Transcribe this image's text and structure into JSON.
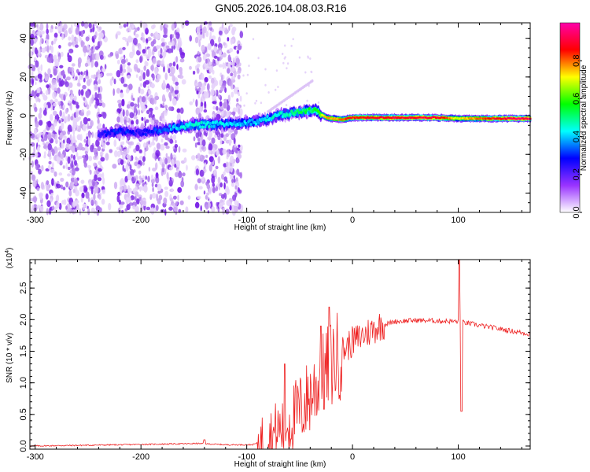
{
  "title": "GN05.2026.104.08.03.R16",
  "chart_data": [
    {
      "type": "heatmap",
      "xlabel": "Height of straight line (km)",
      "ylabel": "Frequency (Hz)",
      "xlim": [
        -305,
        168
      ],
      "ylim": [
        -50,
        48
      ],
      "xticks": [
        -300,
        -200,
        -100,
        0,
        100
      ],
      "yticks": [
        -40,
        -20,
        0,
        20,
        40
      ],
      "colorbar": {
        "label": "Normalized spectral amplitude",
        "range": [
          0.0,
          1.0
        ],
        "ticks": [
          0.0,
          0.2,
          0.4,
          0.6,
          0.8
        ],
        "colors": [
          "#ffffff",
          "#9933ff",
          "#0000ff",
          "#00ffff",
          "#00ff00",
          "#ffff00",
          "#ff0000",
          "#ff00aa"
        ]
      },
      "noise_band": {
        "x_start": -305,
        "x_end": -105,
        "gaps": [
          [
            -235,
            -222
          ],
          [
            -160,
            -148
          ]
        ]
      },
      "ridge": [
        {
          "x": -240,
          "f": -10,
          "amp": 0.25
        },
        {
          "x": -220,
          "f": -8,
          "amp": 0.3
        },
        {
          "x": -200,
          "f": -9,
          "amp": 0.25
        },
        {
          "x": -155,
          "f": -5,
          "amp": 0.45
        },
        {
          "x": -110,
          "f": -4,
          "amp": 0.4
        },
        {
          "x": -90,
          "f": -3,
          "amp": 0.4
        },
        {
          "x": -70,
          "f": 0,
          "amp": 0.45
        },
        {
          "x": -50,
          "f": 2,
          "amp": 0.5
        },
        {
          "x": -35,
          "f": 3,
          "amp": 0.55
        },
        {
          "x": -25,
          "f": -1,
          "amp": 0.75
        },
        {
          "x": -10,
          "f": -2,
          "amp": 0.8
        },
        {
          "x": 0,
          "f": -1,
          "amp": 0.85
        },
        {
          "x": 40,
          "f": -1,
          "amp": 0.9
        },
        {
          "x": 80,
          "f": -1,
          "amp": 0.9
        },
        {
          "x": 100,
          "f": -1.5,
          "amp": 0.7
        },
        {
          "x": 140,
          "f": -1.5,
          "amp": 0.9
        },
        {
          "x": 168,
          "f": -1.5,
          "amp": 0.95
        }
      ]
    },
    {
      "type": "line",
      "xlabel": "Height of straight line (km)",
      "ylabel": "SNR (10 * v/v)",
      "y_multiplier": "(x10",
      "y_multiplier_exp": "4",
      "y_multiplier_close": ")",
      "xlim": [
        -305,
        168
      ],
      "ylim": [
        -0.05,
        2.95
      ],
      "xticks": [
        -300,
        -200,
        -100,
        0,
        100
      ],
      "yticks": [
        "0.0",
        "0.5",
        "1.0",
        "1.5",
        "2.0",
        "2.5"
      ],
      "color": "#ee2222",
      "envelope": [
        {
          "x": -305,
          "y": 0.0
        },
        {
          "x": -220,
          "y": 0.02
        },
        {
          "x": -145,
          "y": 0.04
        },
        {
          "x": -120,
          "y": 0.02
        },
        {
          "x": -95,
          "y": 0.02
        },
        {
          "x": -80,
          "y": 0.1
        },
        {
          "x": -65,
          "y": 0.3
        },
        {
          "x": -50,
          "y": 0.55
        },
        {
          "x": -40,
          "y": 0.8
        },
        {
          "x": -30,
          "y": 1.05
        },
        {
          "x": -20,
          "y": 1.3
        },
        {
          "x": -10,
          "y": 1.5
        },
        {
          "x": 0,
          "y": 1.65
        },
        {
          "x": 10,
          "y": 1.75
        },
        {
          "x": 25,
          "y": 1.9
        },
        {
          "x": 40,
          "y": 1.97
        },
        {
          "x": 60,
          "y": 1.99
        },
        {
          "x": 80,
          "y": 1.98
        },
        {
          "x": 100,
          "y": 1.97
        },
        {
          "x": 130,
          "y": 1.88
        },
        {
          "x": 168,
          "y": 1.77
        }
      ],
      "spikes": [
        {
          "x": -140,
          "y": 0.1
        },
        {
          "x": -64,
          "y": 1.3
        },
        {
          "x": -30,
          "y": 1.9
        },
        {
          "x": -22,
          "y": 2.2
        },
        {
          "x": 101,
          "y": 2.95
        },
        {
          "x": 103,
          "y": 0.55
        }
      ]
    }
  ]
}
